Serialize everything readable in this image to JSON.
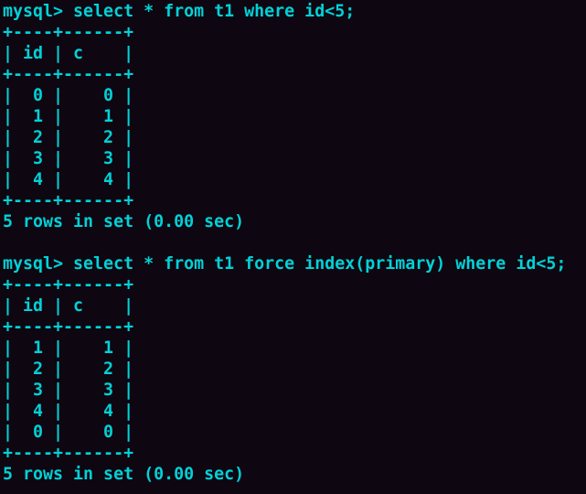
{
  "colors": {
    "background": "#0e0610",
    "text": "#00d2d8"
  },
  "terminal": {
    "lines": [
      "mysql> select * from t1 where id<5;",
      "+----+------+",
      "| id | c    |",
      "+----+------+",
      "|  0 |    0 |",
      "|  1 |    1 |",
      "|  2 |    2 |",
      "|  3 |    3 |",
      "|  4 |    4 |",
      "+----+------+",
      "5 rows in set (0.00 sec)",
      "",
      "mysql> select * from t1 force index(primary) where id<5;",
      "+----+------+",
      "| id | c    |",
      "+----+------+",
      "|  1 |    1 |",
      "|  2 |    2 |",
      "|  3 |    3 |",
      "|  4 |    4 |",
      "|  0 |    0 |",
      "+----+------+",
      "5 rows in set (0.00 sec)"
    ]
  }
}
